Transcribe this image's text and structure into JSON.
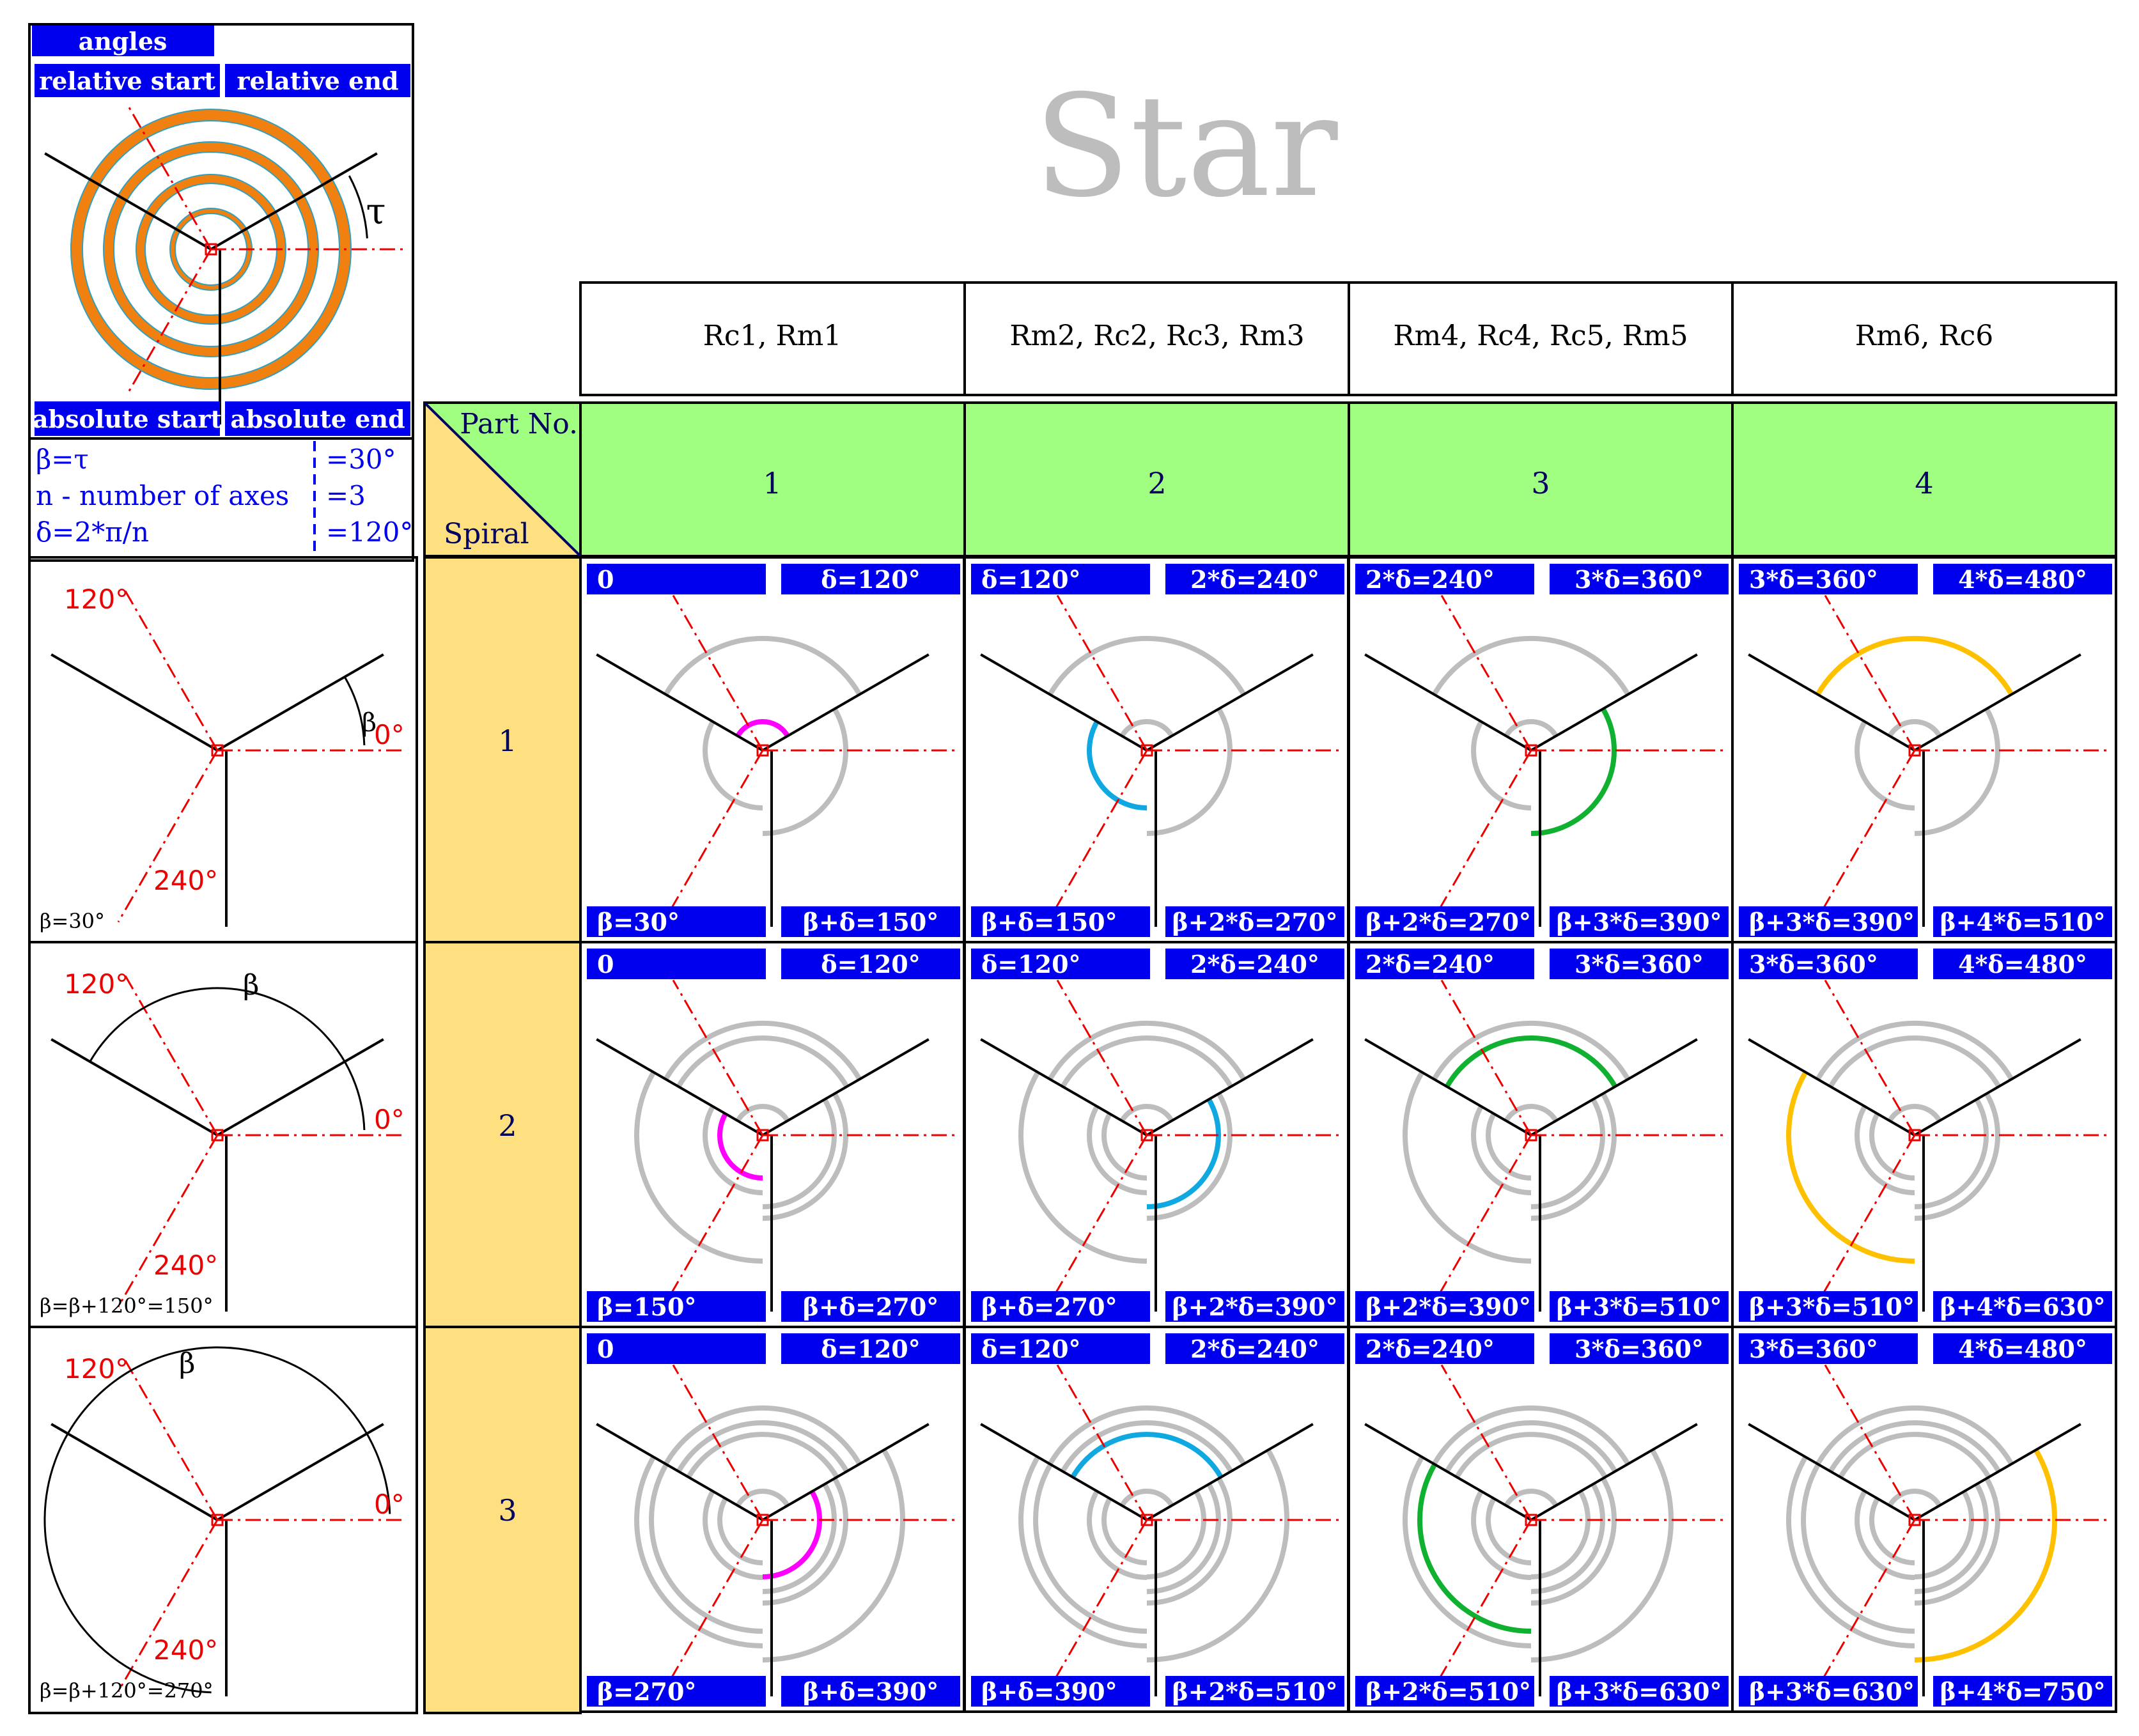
{
  "title": "Star",
  "colors": {
    "label_bg": "#0000ee",
    "label_text": "#ffffff",
    "part_row_bg": "#a0ff80",
    "spiral_col_bg": "#ffe080",
    "gray": "#bdbdbd",
    "axis_red": "#ee0000",
    "magenta": "#ff00ff",
    "cyan": "#10a8e0",
    "green": "#10b030",
    "yellow": "#ffc000",
    "legend_orange": "#f08010",
    "legend_teal": "#30a0c0",
    "text_dark": "#000060"
  },
  "legend": {
    "angles": "angles",
    "relative_start": "relative start",
    "relative_end": "relative end",
    "absolute_start": "absolute start",
    "absolute_end": "absolute end",
    "tau": "τ",
    "formulas": [
      {
        "name": "β=τ",
        "value": "=30°"
      },
      {
        "name": "n - number of axes",
        "value": "=3"
      },
      {
        "name": "δ=2*π/n",
        "value": "=120°"
      }
    ]
  },
  "header": {
    "columns": [
      "Rc1, Rm1",
      "Rm2, Rc2, Rc3, Rm3",
      "Rm4, Rc4, Rc5, Rm5",
      "Rm6, Rc6"
    ],
    "part_no_label": "Part No.",
    "spiral_label": "Spiral",
    "part_numbers": [
      "1",
      "2",
      "3",
      "4"
    ]
  },
  "spirals": [
    "1",
    "2",
    "3"
  ],
  "left_panels": [
    {
      "beta_note": "β=30°",
      "a120": "120°",
      "a0": "0°",
      "a240": "240°",
      "beta_sym": "β"
    },
    {
      "beta_note": "β=β+120°=150°",
      "a120": "120°",
      "a0": "0°",
      "a240": "240°",
      "beta_sym": "β"
    },
    {
      "beta_note": "β=β+120°=270°",
      "a120": "120°",
      "a0": "0°",
      "a240": "240°",
      "beta_sym": "β"
    }
  ],
  "cells": [
    [
      {
        "tl": "0",
        "tr": "δ=120°",
        "bl": "β=30°",
        "br": "β+δ=150°",
        "arc_start": 30,
        "arc_end": 150,
        "color": "magenta",
        "ring": 1
      },
      {
        "tl": "δ=120°",
        "tr": "2*δ=240°",
        "bl": "β+δ=150°",
        "br": "β+2*δ=270°",
        "arc_start": 150,
        "arc_end": 270,
        "color": "cyan",
        "ring": 2
      },
      {
        "tl": "2*δ=240°",
        "tr": "3*δ=360°",
        "bl": "β+2*δ=270°",
        "br": "β+3*δ=390°",
        "arc_start": 270,
        "arc_end": 390,
        "color": "green",
        "ring": 3
      },
      {
        "tl": "3*δ=360°",
        "tr": "4*δ=480°",
        "bl": "β+3*δ=390°",
        "br": "β+4*δ=510°",
        "arc_start": 390,
        "arc_end": 510,
        "color": "yellow",
        "ring": 4
      }
    ],
    [
      {
        "tl": "0",
        "tr": "δ=120°",
        "bl": "β=150°",
        "br": "β+δ=270°",
        "arc_start": 150,
        "arc_end": 270,
        "color": "magenta",
        "ring": 1
      },
      {
        "tl": "δ=120°",
        "tr": "2*δ=240°",
        "bl": "β+δ=270°",
        "br": "β+2*δ=390°",
        "arc_start": 270,
        "arc_end": 390,
        "color": "cyan",
        "ring": 2
      },
      {
        "tl": "2*δ=240°",
        "tr": "3*δ=360°",
        "bl": "β+2*δ=390°",
        "br": "β+3*δ=510°",
        "arc_start": 390,
        "arc_end": 510,
        "color": "green",
        "ring": 3
      },
      {
        "tl": "3*δ=360°",
        "tr": "4*δ=480°",
        "bl": "β+3*δ=510°",
        "br": "β+4*δ=630°",
        "arc_start": 510,
        "arc_end": 630,
        "color": "yellow",
        "ring": 4
      }
    ],
    [
      {
        "tl": "0",
        "tr": "δ=120°",
        "bl": "β=270°",
        "br": "β+δ=390°",
        "arc_start": 270,
        "arc_end": 390,
        "color": "magenta",
        "ring": 1
      },
      {
        "tl": "δ=120°",
        "tr": "2*δ=240°",
        "bl": "β+δ=390°",
        "br": "β+2*δ=510°",
        "arc_start": 390,
        "arc_end": 510,
        "color": "cyan",
        "ring": 2
      },
      {
        "tl": "2*δ=240°",
        "tr": "3*δ=360°",
        "bl": "β+2*δ=510°",
        "br": "β+3*δ=630°",
        "arc_start": 510,
        "arc_end": 630,
        "color": "green",
        "ring": 3
      },
      {
        "tl": "3*δ=360°",
        "tr": "4*δ=480°",
        "bl": "β+3*δ=630°",
        "br": "β+4*δ=750°",
        "arc_start": 630,
        "arc_end": 750,
        "color": "yellow",
        "ring": 4
      }
    ]
  ]
}
